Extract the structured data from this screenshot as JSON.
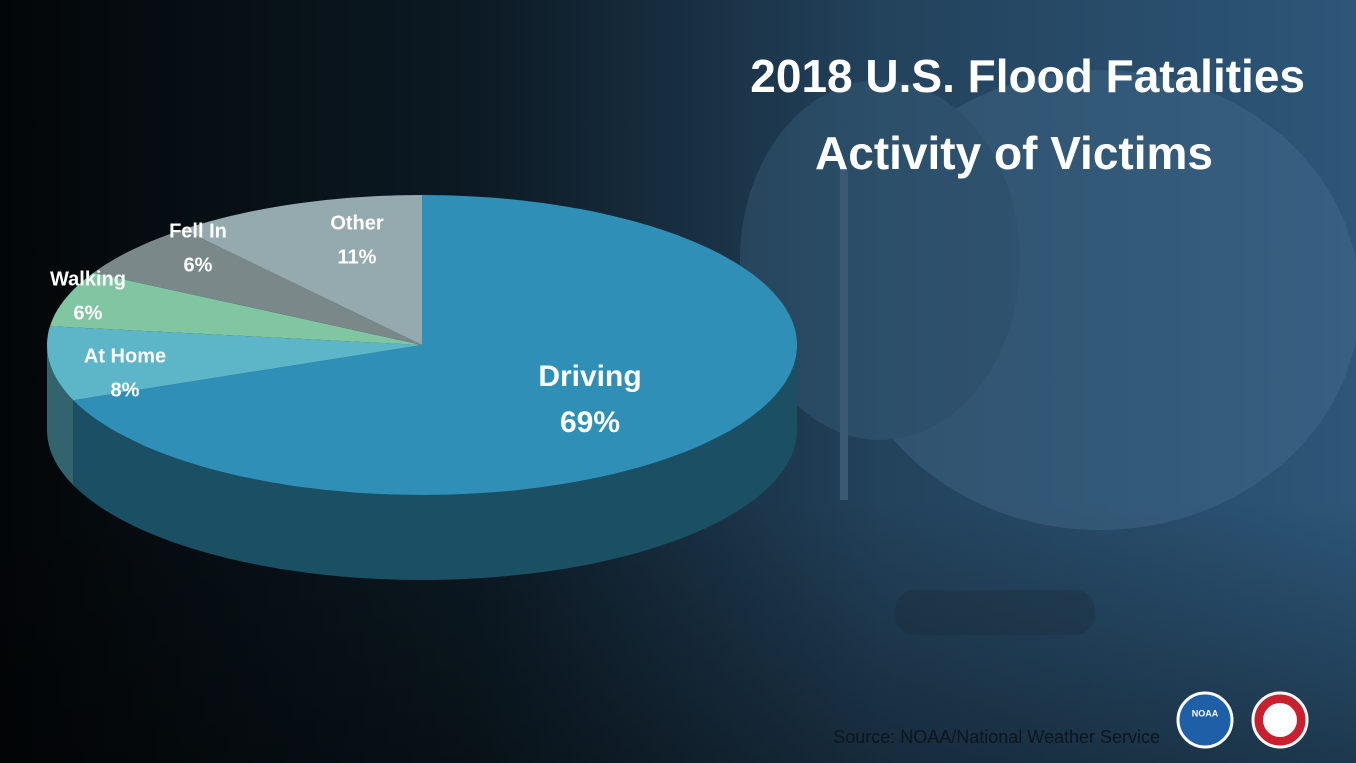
{
  "chart_data": {
    "type": "pie",
    "title": "2018 U.S. Flood Fatalities",
    "subtitle": "Activity of Victims",
    "source": "Source:   NOAA/National Weather Service",
    "logo_text": "NOAA",
    "categories": [
      "Driving",
      "At Home",
      "Walking",
      "Fell In",
      "Other"
    ],
    "values": [
      69,
      8,
      6,
      6,
      11
    ],
    "value_labels": [
      "69%",
      "8%",
      "6%",
      "6%",
      "11%"
    ],
    "colors": [
      "#2f8fb6",
      "#5db6c8",
      "#80c6a2",
      "#7b888a",
      "#95aaaf"
    ]
  }
}
